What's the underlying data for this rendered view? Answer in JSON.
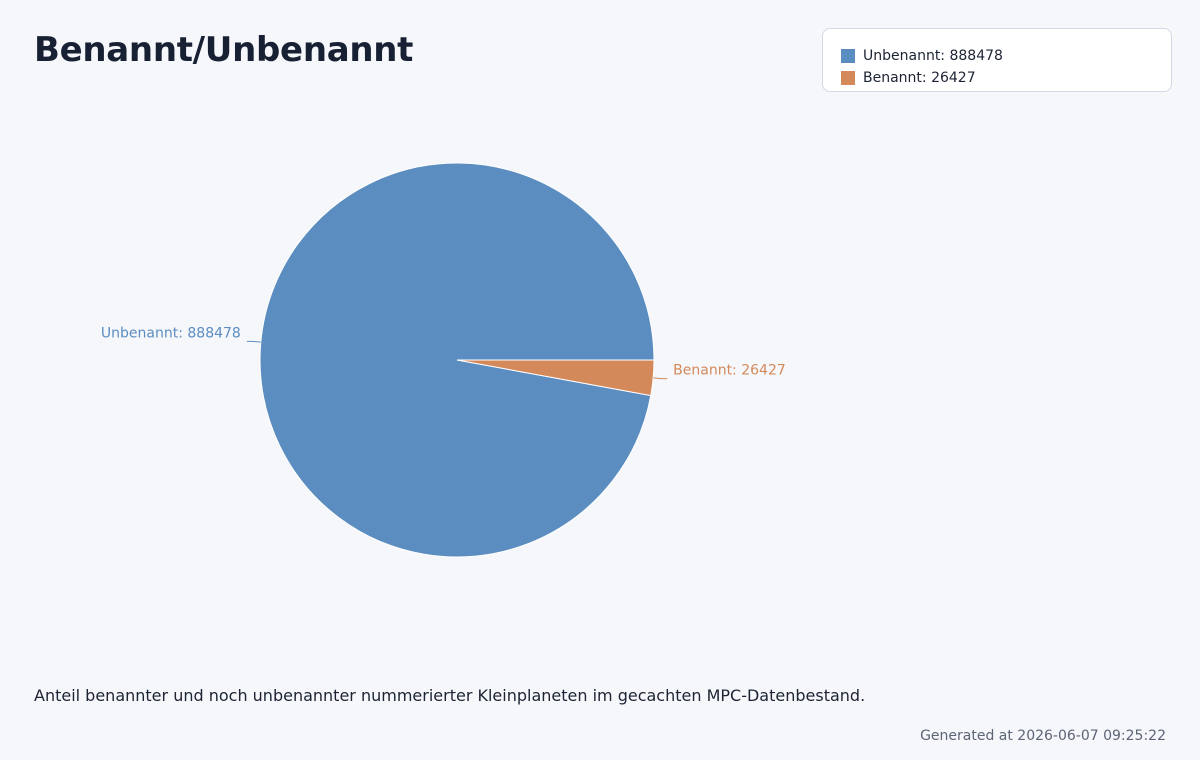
{
  "title": "Benannt/Unbenannt",
  "description": "Anteil benannter und noch unbenannter nummerierter Kleinplaneten im gecachten MPC-Datenbestand.",
  "footer": "Generated at 2026-06-07 09:25:22",
  "chart_data": {
    "type": "pie",
    "title": "Benannt/Unbenannt",
    "legend_position": "top-right",
    "slices": [
      {
        "label": "Unbenannt",
        "value": 888478,
        "display": "Unbenannt: 888478",
        "color": "#5b8dc0"
      },
      {
        "label": "Benannt",
        "value": 26427,
        "display": "Benannt: 26427",
        "color": "#d4895a"
      }
    ]
  }
}
